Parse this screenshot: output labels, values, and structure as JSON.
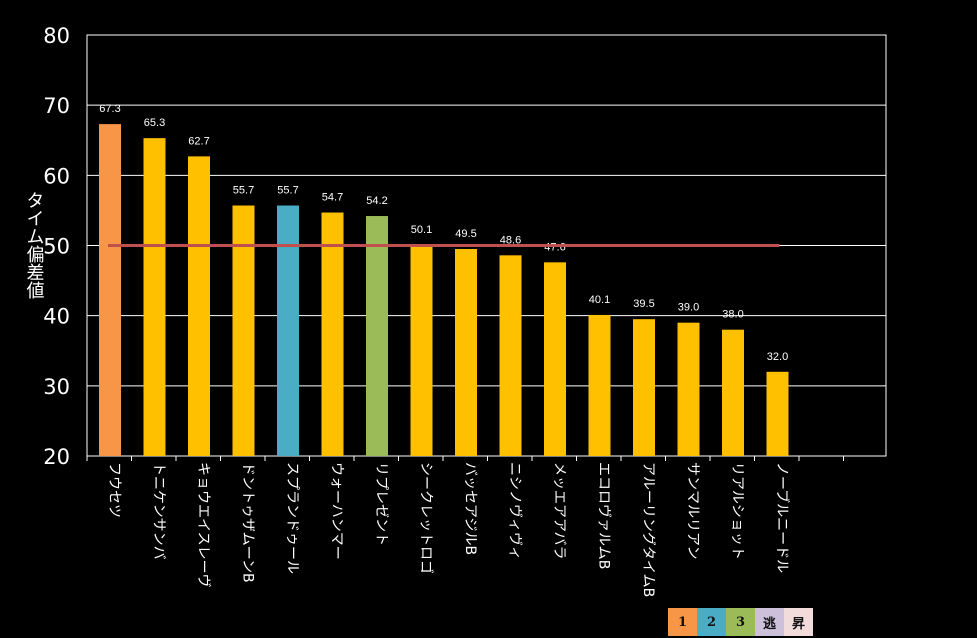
{
  "chart_data": {
    "type": "bar",
    "ylabel": "タイム偏差値",
    "ylim": [
      20,
      80
    ],
    "yticks": [
      20,
      30,
      40,
      50,
      60,
      70,
      80
    ],
    "grid": true,
    "reference_line": 50,
    "categories": [
      "フウセツ",
      "トニケンサンバ",
      "キョウエイスレーヴ",
      "ドントゥザムーンB",
      "スプランドゥール",
      "ウォーハンマー",
      "リプレゼント",
      "シークレットロゴ",
      "バッセアジルB",
      "ニシノヴィヴィ",
      "メッエアアバラ",
      "エコロヴァルムB",
      "アルーリングタイムB",
      "サンマルリアン",
      "リアルショット",
      "ノーブルニードル"
    ],
    "values": [
      67.3,
      65.3,
      62.7,
      55.7,
      55.7,
      54.7,
      54.2,
      50.1,
      49.5,
      48.6,
      47.6,
      40.1,
      39.5,
      39.0,
      38.0,
      32.0
    ],
    "value_labels": [
      "67.3",
      "65.3",
      "62.7",
      "55.7",
      "55.7",
      "54.7",
      "54.2",
      "50.1",
      "49.5",
      "48.6",
      "47.6",
      "40.1",
      "39.5",
      "39.0",
      "38.0",
      "32.0"
    ],
    "bar_colors": [
      "#f79646",
      "#ffc000",
      "#ffc000",
      "#ffc000",
      "#4bacc6",
      "#ffc000",
      "#9bbb59",
      "#ffc000",
      "#ffc000",
      "#ffc000",
      "#ffc000",
      "#ffc000",
      "#ffc000",
      "#ffc000",
      "#ffc000",
      "#ffc000"
    ],
    "reference_line_color": "#c0504d"
  },
  "legend": [
    {
      "label": "1",
      "color": "#f79646"
    },
    {
      "label": "2",
      "color": "#4bacc6"
    },
    {
      "label": "3",
      "color": "#9bbb59"
    },
    {
      "label": "逃",
      "color": "#ccc0da"
    },
    {
      "label": "昇",
      "color": "#f2dcdb"
    }
  ]
}
